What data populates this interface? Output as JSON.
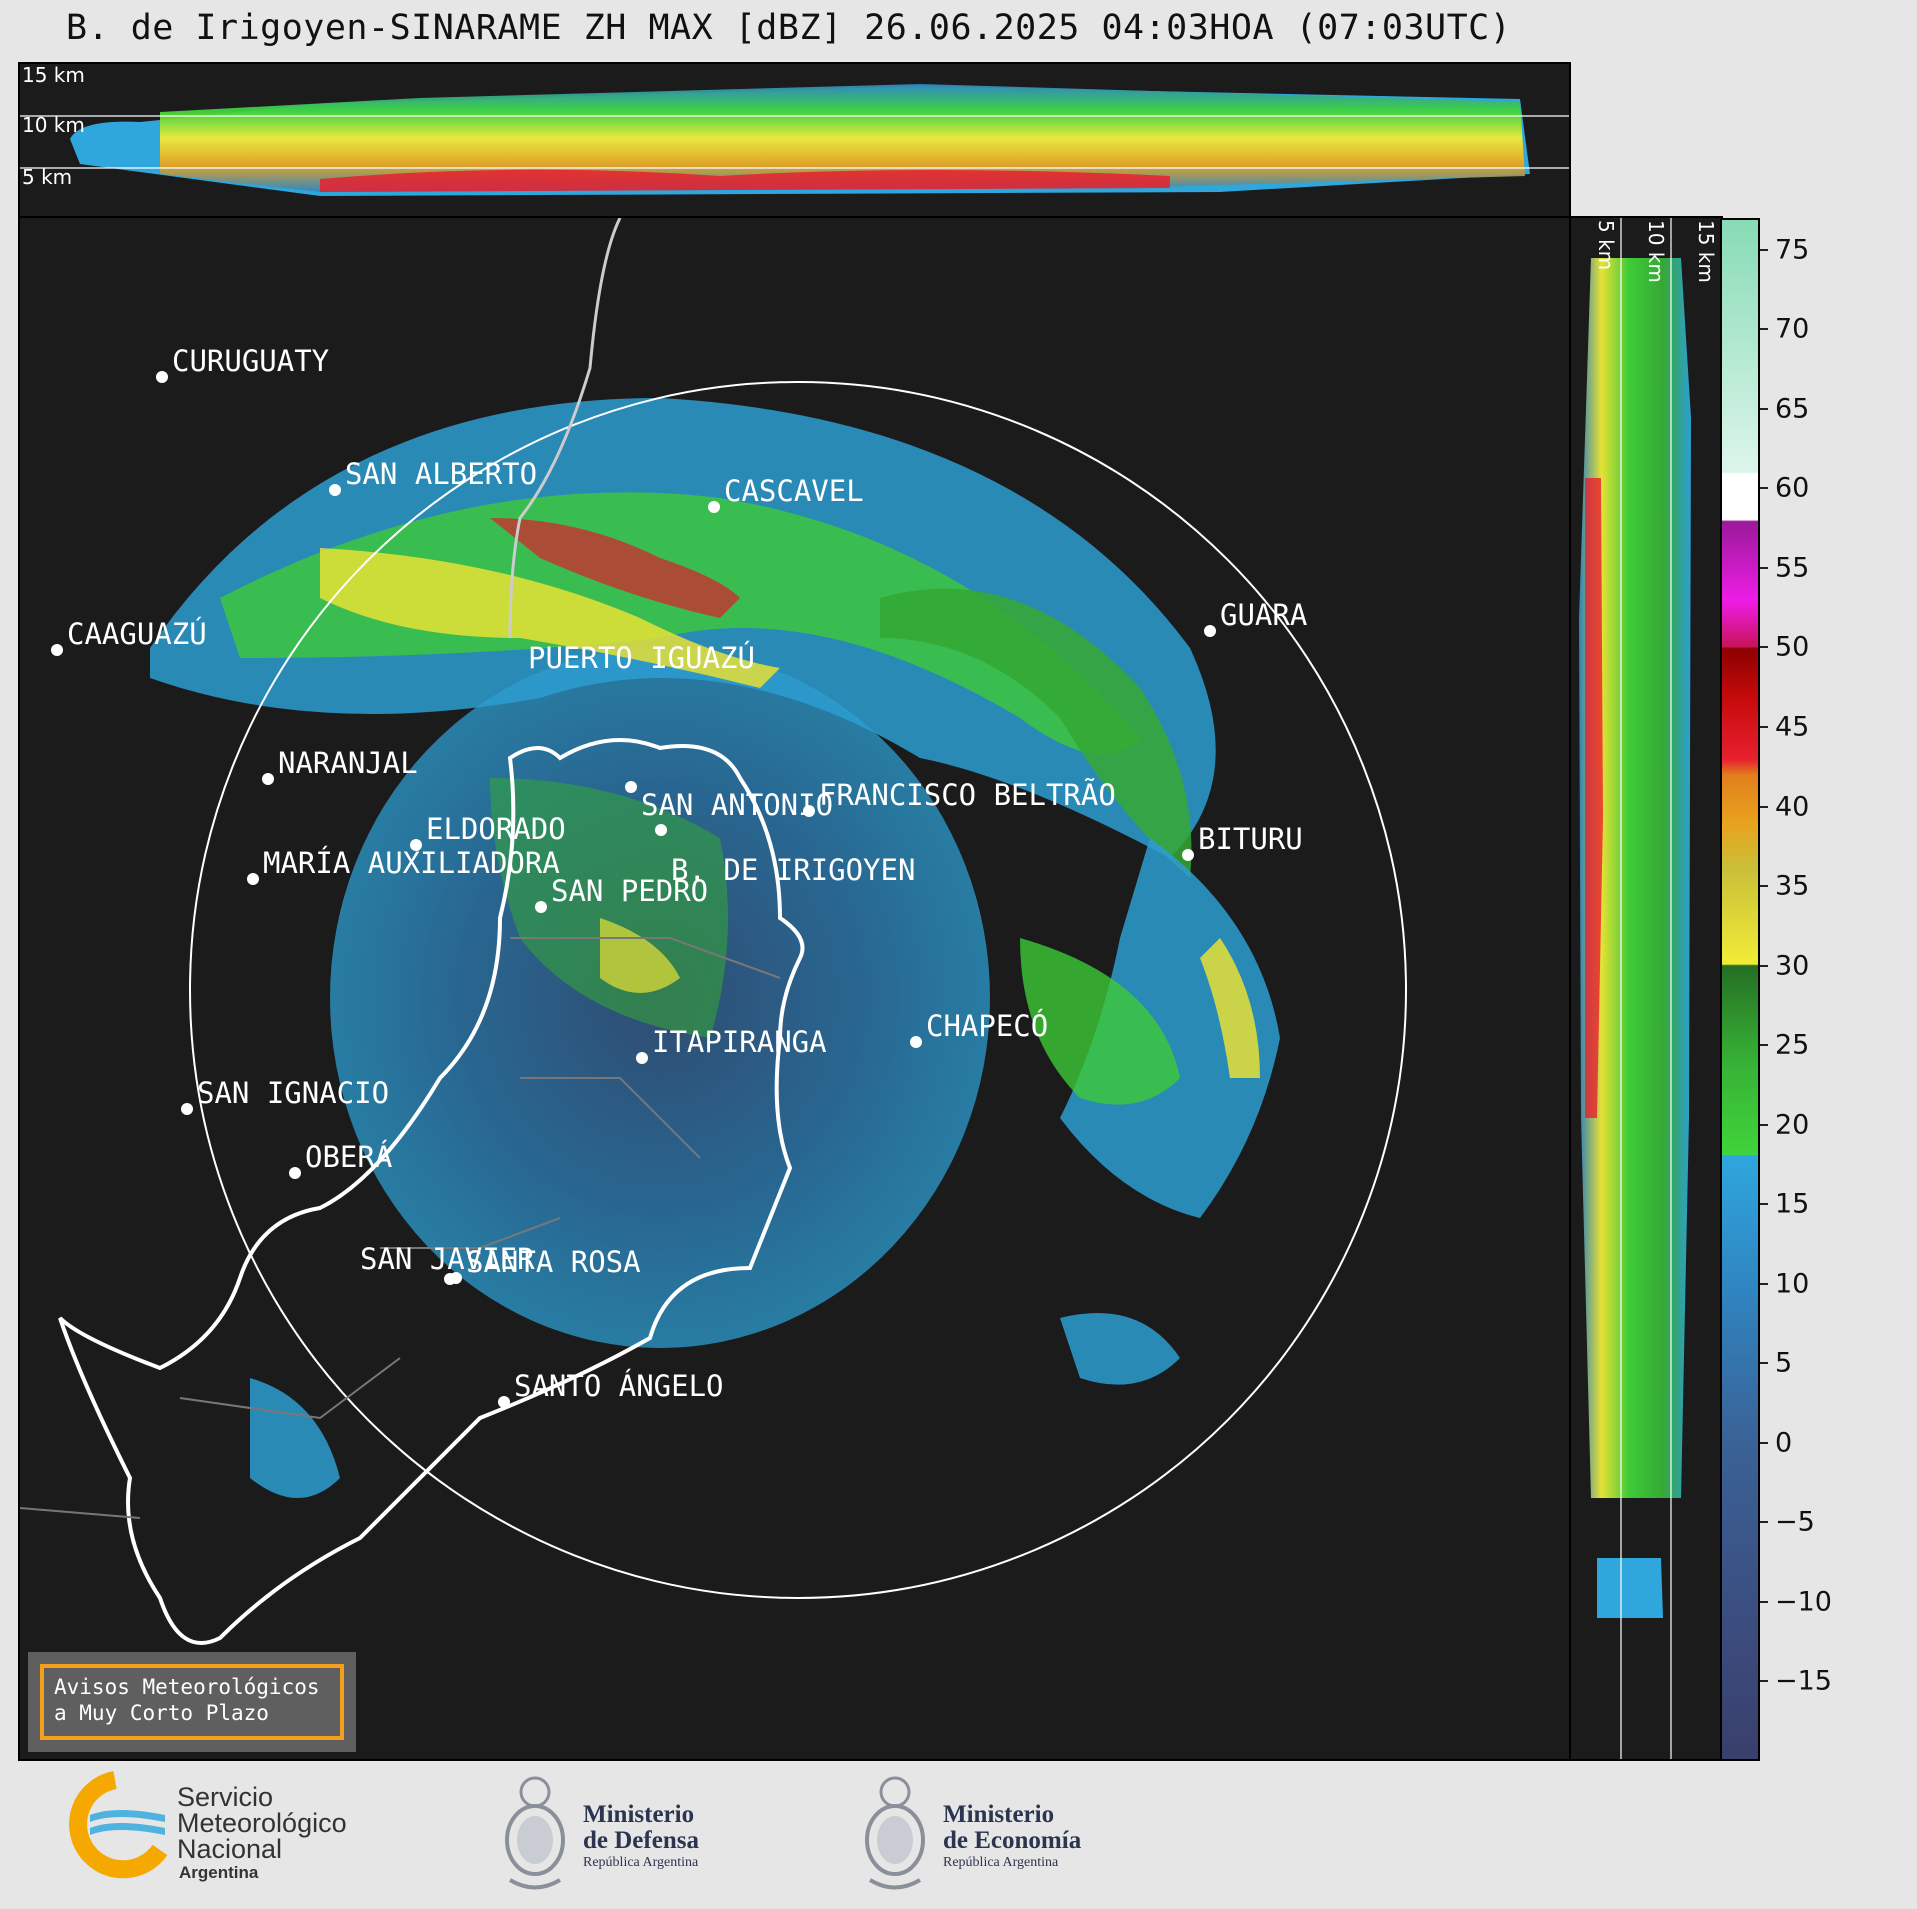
{
  "title": "B. de Irigoyen-SINARAME ZH MAX [dBZ] 26.06.2025 04:03HOA (07:03UTC)",
  "top_panel_heights": [
    "15 km",
    "10 km",
    "5 km"
  ],
  "side_panel_heights": [
    "5 km",
    "10 km",
    "15 km"
  ],
  "cities": [
    {
      "name": "CURUGUATY"
    },
    {
      "name": "SAN ALBERTO"
    },
    {
      "name": "CASCAVEL"
    },
    {
      "name": "CAAGUAZÚ"
    },
    {
      "name": "GUARA"
    },
    {
      "name": "PUERTO IGUAZÚ"
    },
    {
      "name": "NARANJAL"
    },
    {
      "name": "SAN ANTONIO"
    },
    {
      "name": "FRANCISCO BELTRÃO"
    },
    {
      "name": "BITURU"
    },
    {
      "name": "B. DE IRIGOYEN"
    },
    {
      "name": "ELDORADO"
    },
    {
      "name": "MARÍA AUXILIADORA"
    },
    {
      "name": "SAN PEDRO"
    },
    {
      "name": "CHAPECÓ"
    },
    {
      "name": "ITAPIRANGA"
    },
    {
      "name": "SAN IGNACIO"
    },
    {
      "name": "OBERÁ"
    },
    {
      "name": "SAN JAVIER"
    },
    {
      "name": "SANTA ROSA"
    },
    {
      "name": "SANTO ÁNGELO"
    }
  ],
  "colorbar": {
    "unit": "dBZ",
    "min": -20,
    "max": 77,
    "ticks": [
      "75",
      "70",
      "65",
      "60",
      "55",
      "50",
      "45",
      "40",
      "35",
      "30",
      "25",
      "20",
      "15",
      "10",
      "5",
      "0",
      "−5",
      "−10",
      "−15"
    ],
    "tick_values": [
      75,
      70,
      65,
      60,
      55,
      50,
      45,
      40,
      35,
      30,
      25,
      20,
      15,
      10,
      5,
      0,
      -5,
      -10,
      -15
    ],
    "stops": [
      {
        "v": -20,
        "c": "#3a3f6b"
      },
      {
        "v": -10,
        "c": "#3b4f82"
      },
      {
        "v": 0,
        "c": "#3a6296"
      },
      {
        "v": 10,
        "c": "#2f86c2"
      },
      {
        "v": 18,
        "c": "#2fa6dc"
      },
      {
        "v": 18.1,
        "c": "#3fd43a"
      },
      {
        "v": 24,
        "c": "#37b035"
      },
      {
        "v": 30,
        "c": "#256f24"
      },
      {
        "v": 30.1,
        "c": "#f2ec37"
      },
      {
        "v": 36,
        "c": "#c9c039"
      },
      {
        "v": 39,
        "c": "#e8a21f"
      },
      {
        "v": 42,
        "c": "#e0801c"
      },
      {
        "v": 43,
        "c": "#e8202e"
      },
      {
        "v": 47,
        "c": "#c40a0a"
      },
      {
        "v": 50,
        "c": "#8c0000"
      },
      {
        "v": 50.1,
        "c": "#c8145a"
      },
      {
        "v": 53,
        "c": "#ee1ce6"
      },
      {
        "v": 58,
        "c": "#9a1a9a"
      },
      {
        "v": 58.1,
        "c": "#ffffff"
      },
      {
        "v": 61,
        "c": "#ffffff"
      },
      {
        "v": 61.1,
        "c": "#dcf5ea"
      },
      {
        "v": 77,
        "c": "#87dbb5"
      }
    ]
  },
  "warning_box": {
    "line1": "Avisos Meteorológicos",
    "line2": "a Muy Corto Plazo"
  },
  "logos": {
    "smn": {
      "line1": "Servicio",
      "line2": "Meteorológico",
      "line3": "Nacional",
      "line4": "Argentina"
    },
    "defensa": {
      "line1": "Ministerio",
      "line2": "de Defensa",
      "line3": "República Argentina"
    },
    "economia": {
      "line1": "Ministerio",
      "line2": "de Economía",
      "line3": "República Argentina"
    }
  }
}
